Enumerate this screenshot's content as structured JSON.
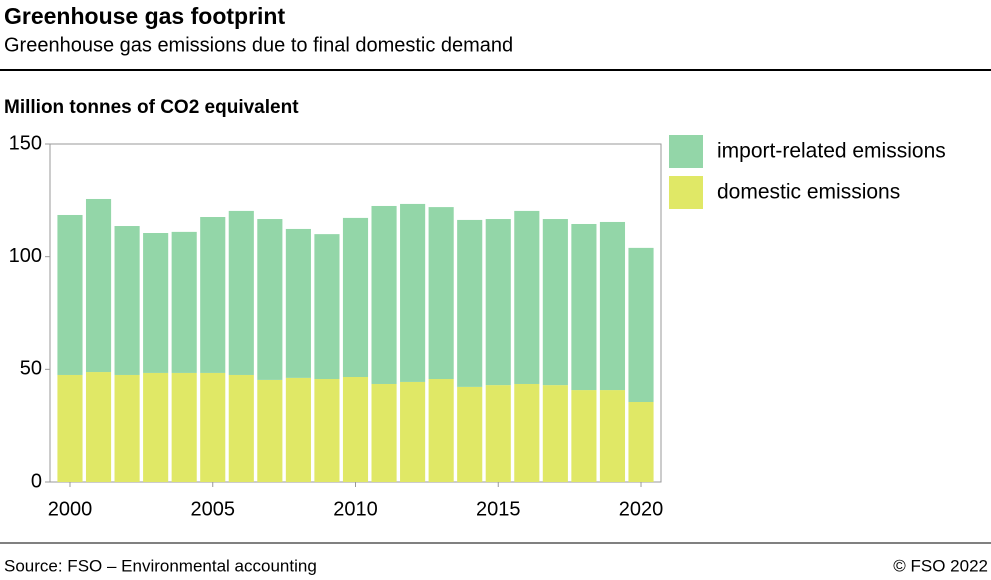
{
  "chart_data": {
    "type": "stacked-bar",
    "title": "Greenhouse gas footprint",
    "subtitle": "Greenhouse gas emissions due to final domestic demand",
    "y_label": "Million tonnes of CO2 equivalent",
    "source": "Source: FSO – Environmental accounting",
    "copyright": "© FSO 2022",
    "x": [
      2000,
      2001,
      2002,
      2003,
      2004,
      2005,
      2006,
      2007,
      2008,
      2009,
      2010,
      2011,
      2012,
      2013,
      2014,
      2015,
      2016,
      2017,
      2018,
      2019,
      2020
    ],
    "series": [
      {
        "name": "domestic emissions",
        "color": "#e0e866",
        "values": [
          47.5,
          48.8,
          47.5,
          48.4,
          48.4,
          48.4,
          47.5,
          45.3,
          46.2,
          45.7,
          46.6,
          43.5,
          44.4,
          45.7,
          42.2,
          43,
          43.5,
          43,
          40.8,
          40.8,
          35.5
        ]
      },
      {
        "name": "import-related emissions",
        "color": "#93d6a8",
        "values": [
          71,
          76.8,
          66.1,
          62.1,
          62.6,
          69.2,
          72.8,
          71.4,
          66.1,
          64.3,
          70.6,
          79,
          79,
          76.3,
          74.1,
          73.7,
          76.8,
          73.7,
          73.7,
          74.6,
          68.4
        ]
      }
    ],
    "xlim": [
      1999.3,
      2020.7
    ],
    "xticks": [
      2000,
      2005,
      2010,
      2015,
      2020
    ],
    "ylim": [
      0,
      150
    ],
    "yticks": [
      0,
      50,
      100,
      150
    ],
    "grid": false,
    "legend": "right"
  }
}
